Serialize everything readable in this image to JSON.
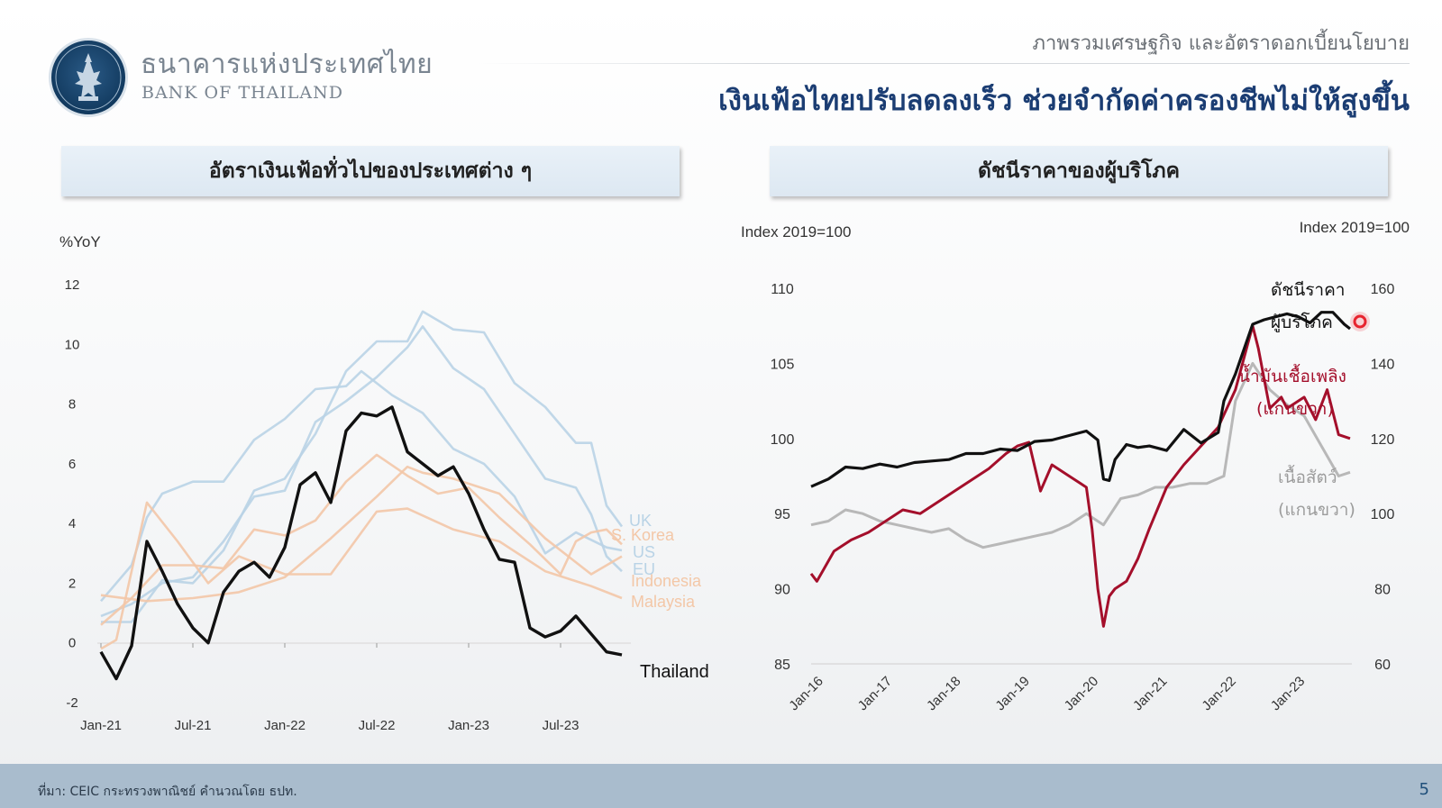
{
  "header": {
    "org_name_th": "ธนาคารแห่งประเทศไทย",
    "org_name_en": "BANK OF THAILAND",
    "topic": "ภาพรวมเศรษฐกิจ และอัตราดอกเบี้ยนโยบาย",
    "headline": "เงินเฟ้อไทยปรับลดลงเร็ว ช่วยจำกัดค่าครองชีพไม่ให้สูงขึ้น"
  },
  "footer": {
    "source": "ที่มา: CEIC กระทรวงพาณิชย์ คำนวณโดย ธปท.",
    "page": "5"
  },
  "colors": {
    "thailand": "#111111",
    "blue_group": "#b9d3e6",
    "orange_group": "#f3c7a7",
    "cpi": "#111111",
    "fuel": "#a40f2b",
    "meat": "#b8b8b8",
    "headline": "#1b3d73",
    "footer_bar": "#a9bccd"
  },
  "chart_data": [
    {
      "type": "line",
      "title": "อัตราเงินเฟ้อทั่วไปของประเทศต่าง ๆ",
      "ylabel": "%YoY",
      "ylim": [
        -2,
        12
      ],
      "yticks": [
        -2,
        0,
        2,
        4,
        6,
        8,
        10,
        12
      ],
      "xlim": [
        "2021-01",
        "2023-11"
      ],
      "xticks": [
        "2021-01",
        "2021-07",
        "2022-01",
        "2022-07",
        "2023-01",
        "2023-07"
      ],
      "xtick_labels": [
        "Jan-21",
        "Jul-21",
        "Jan-22",
        "Jul-22",
        "Jan-23",
        "Jul-23"
      ],
      "grid": false,
      "series": [
        {
          "name": "UK",
          "color_group": "blue",
          "x": [
            "2021-01",
            "2021-03",
            "2021-05",
            "2021-07",
            "2021-09",
            "2021-11",
            "2022-01",
            "2022-03",
            "2022-05",
            "2022-07",
            "2022-09",
            "2022-10",
            "2022-12",
            "2023-02",
            "2023-04",
            "2023-06",
            "2023-08",
            "2023-09",
            "2023-10",
            "2023-11"
          ],
          "values": [
            0.7,
            0.7,
            2.1,
            2.0,
            3.1,
            5.1,
            5.5,
            7.0,
            9.1,
            10.1,
            10.1,
            11.1,
            10.5,
            10.4,
            8.7,
            7.9,
            6.7,
            6.7,
            4.6,
            3.9
          ]
        },
        {
          "name": "US",
          "color_group": "blue",
          "x": [
            "2021-01",
            "2021-03",
            "2021-04",
            "2021-05",
            "2021-07",
            "2021-09",
            "2021-11",
            "2022-01",
            "2022-03",
            "2022-05",
            "2022-06",
            "2022-08",
            "2022-10",
            "2022-12",
            "2023-02",
            "2023-04",
            "2023-06",
            "2023-08",
            "2023-10",
            "2023-11"
          ],
          "values": [
            1.4,
            2.6,
            4.2,
            5.0,
            5.4,
            5.4,
            6.8,
            7.5,
            8.5,
            8.6,
            9.1,
            8.3,
            7.7,
            6.5,
            6.0,
            4.9,
            3.0,
            3.7,
            3.2,
            3.1
          ]
        },
        {
          "name": "EU",
          "color_group": "blue",
          "x": [
            "2021-01",
            "2021-03",
            "2021-05",
            "2021-07",
            "2021-09",
            "2021-11",
            "2022-01",
            "2022-03",
            "2022-05",
            "2022-07",
            "2022-09",
            "2022-10",
            "2022-12",
            "2023-02",
            "2023-04",
            "2023-06",
            "2023-08",
            "2023-09",
            "2023-10",
            "2023-11"
          ],
          "values": [
            0.9,
            1.3,
            2.0,
            2.2,
            3.4,
            4.9,
            5.1,
            7.4,
            8.1,
            8.9,
            9.9,
            10.6,
            9.2,
            8.5,
            7.0,
            5.5,
            5.2,
            4.3,
            2.9,
            2.4
          ]
        },
        {
          "name": "S. Korea",
          "color_group": "orange",
          "x": [
            "2021-01",
            "2021-03",
            "2021-05",
            "2021-07",
            "2021-09",
            "2021-11",
            "2022-01",
            "2022-03",
            "2022-05",
            "2022-07",
            "2022-09",
            "2022-11",
            "2023-01",
            "2023-03",
            "2023-05",
            "2023-07",
            "2023-08",
            "2023-09",
            "2023-10",
            "2023-11"
          ],
          "values": [
            0.6,
            1.5,
            2.6,
            2.6,
            2.5,
            3.8,
            3.6,
            4.1,
            5.4,
            6.3,
            5.6,
            5.0,
            5.2,
            4.2,
            3.3,
            2.3,
            3.4,
            3.7,
            3.8,
            3.3
          ]
        },
        {
          "name": "Indonesia",
          "color_group": "orange",
          "x": [
            "2021-01",
            "2021-04",
            "2021-07",
            "2021-10",
            "2022-01",
            "2022-04",
            "2022-07",
            "2022-09",
            "2022-10",
            "2022-12",
            "2023-03",
            "2023-06",
            "2023-09",
            "2023-11"
          ],
          "values": [
            1.6,
            1.4,
            1.5,
            1.7,
            2.2,
            3.5,
            4.9,
            5.9,
            5.7,
            5.5,
            5.0,
            3.5,
            2.3,
            2.9
          ]
        },
        {
          "name": "Malaysia",
          "color_group": "orange",
          "x": [
            "2021-01",
            "2021-02",
            "2021-04",
            "2021-06",
            "2021-08",
            "2021-10",
            "2022-01",
            "2022-04",
            "2022-07",
            "2022-09",
            "2022-12",
            "2023-03",
            "2023-06",
            "2023-09",
            "2023-11"
          ],
          "values": [
            -0.2,
            0.1,
            4.7,
            3.4,
            2.0,
            2.9,
            2.3,
            2.3,
            4.4,
            4.5,
            3.8,
            3.4,
            2.4,
            1.9,
            1.5
          ]
        },
        {
          "name": "Thailand",
          "color_group": "black",
          "x": [
            "2021-01",
            "2021-02",
            "2021-03",
            "2021-04",
            "2021-05",
            "2021-06",
            "2021-07",
            "2021-08",
            "2021-09",
            "2021-10",
            "2021-11",
            "2021-12",
            "2022-01",
            "2022-02",
            "2022-03",
            "2022-04",
            "2022-05",
            "2022-06",
            "2022-07",
            "2022-08",
            "2022-09",
            "2022-10",
            "2022-11",
            "2022-12",
            "2023-01",
            "2023-02",
            "2023-03",
            "2023-04",
            "2023-05",
            "2023-06",
            "2023-07",
            "2023-08",
            "2023-09",
            "2023-10",
            "2023-11"
          ],
          "values": [
            -0.3,
            -1.2,
            -0.1,
            3.4,
            2.4,
            1.3,
            0.5,
            0.0,
            1.7,
            2.4,
            2.7,
            2.2,
            3.2,
            5.3,
            5.7,
            4.7,
            7.1,
            7.7,
            7.6,
            7.9,
            6.4,
            6.0,
            5.6,
            5.9,
            5.0,
            3.8,
            2.8,
            2.7,
            0.5,
            0.2,
            0.4,
            0.9,
            0.3,
            -0.3,
            -0.4
          ]
        }
      ]
    },
    {
      "type": "line",
      "title": "ดัชนีราคาของผู้บริโภค",
      "ylabel_left": "Index 2019=100",
      "ylabel_right": "Index 2019=100",
      "ylim_left": [
        85,
        110
      ],
      "yticks_left": [
        85,
        90,
        95,
        100,
        105,
        110
      ],
      "ylim_right": [
        60,
        160
      ],
      "yticks_right": [
        60,
        80,
        100,
        120,
        140,
        160
      ],
      "xlim": [
        "2016-01",
        "2023-11"
      ],
      "xticks": [
        "2016-01",
        "2017-01",
        "2018-01",
        "2019-01",
        "2020-01",
        "2021-01",
        "2022-01",
        "2023-01"
      ],
      "xtick_labels": [
        "Jan-16",
        "Jan-17",
        "Jan-18",
        "Jan-19",
        "Jan-20",
        "Jan-21",
        "Jan-22",
        "Jan-23"
      ],
      "grid": false,
      "series": [
        {
          "name": "ดัชนีราคาผู้บริโภค",
          "axis": "left",
          "x": [
            "2016-01",
            "2016-04",
            "2016-07",
            "2016-10",
            "2017-01",
            "2017-04",
            "2017-07",
            "2017-10",
            "2018-01",
            "2018-04",
            "2018-07",
            "2018-10",
            "2019-01",
            "2019-04",
            "2019-07",
            "2019-10",
            "2020-01",
            "2020-03",
            "2020-04",
            "2020-05",
            "2020-06",
            "2020-08",
            "2020-10",
            "2020-12",
            "2021-03",
            "2021-06",
            "2021-09",
            "2021-12",
            "2022-01",
            "2022-03",
            "2022-06",
            "2022-08",
            "2022-10",
            "2022-12",
            "2023-02",
            "2023-04",
            "2023-06",
            "2023-08",
            "2023-10",
            "2023-11"
          ],
          "values": [
            96.8,
            97.3,
            98.1,
            98.0,
            98.3,
            98.1,
            98.4,
            98.5,
            98.6,
            99.0,
            99.0,
            99.3,
            99.2,
            99.8,
            99.9,
            100.2,
            100.5,
            99.9,
            97.3,
            97.2,
            98.6,
            99.6,
            99.4,
            99.5,
            99.2,
            100.6,
            99.7,
            100.4,
            102.5,
            104.3,
            107.6,
            107.9,
            108.1,
            108.3,
            108.1,
            107.7,
            108.4,
            108.4,
            107.6,
            107.3
          ]
        },
        {
          "name": "น้ำมันเชื้อเพลิง",
          "axis": "right",
          "x": [
            "2016-01",
            "2016-02",
            "2016-05",
            "2016-08",
            "2016-11",
            "2017-02",
            "2017-05",
            "2017-08",
            "2017-11",
            "2018-02",
            "2018-05",
            "2018-08",
            "2018-11",
            "2019-01",
            "2019-03",
            "2019-05",
            "2019-07",
            "2019-10",
            "2019-12",
            "2020-01",
            "2020-02",
            "2020-03",
            "2020-04",
            "2020-05",
            "2020-06",
            "2020-08",
            "2020-10",
            "2020-12",
            "2021-03",
            "2021-06",
            "2021-09",
            "2021-12",
            "2022-03",
            "2022-06",
            "2022-07",
            "2022-09",
            "2022-11",
            "2022-12",
            "2023-03",
            "2023-05",
            "2023-07",
            "2023-09",
            "2023-11"
          ],
          "values": [
            84,
            82,
            90,
            93,
            95,
            98,
            101,
            100,
            103,
            106,
            109,
            112,
            116,
            118,
            119,
            106,
            113,
            110,
            108,
            107,
            96,
            80,
            70,
            78,
            80,
            82,
            88,
            96,
            107,
            113,
            118,
            123,
            133,
            150,
            144,
            128,
            131,
            128,
            131,
            125,
            133,
            121,
            120
          ]
        },
        {
          "name": "เนื้อสัตว์",
          "axis": "right",
          "x": [
            "2016-01",
            "2016-04",
            "2016-07",
            "2016-10",
            "2017-01",
            "2017-04",
            "2017-07",
            "2017-10",
            "2018-01",
            "2018-04",
            "2018-07",
            "2018-10",
            "2019-01",
            "2019-04",
            "2019-07",
            "2019-10",
            "2020-01",
            "2020-04",
            "2020-07",
            "2020-10",
            "2021-01",
            "2021-04",
            "2021-07",
            "2021-10",
            "2022-01",
            "2022-03",
            "2022-06",
            "2022-09",
            "2022-12",
            "2023-03",
            "2023-06",
            "2023-09",
            "2023-11"
          ],
          "values": [
            97,
            98,
            101,
            100,
            98,
            97,
            96,
            95,
            96,
            93,
            91,
            92,
            93,
            94,
            95,
            97,
            100,
            97,
            104,
            105,
            107,
            107,
            108,
            108,
            110,
            130,
            140,
            133,
            129,
            126,
            118,
            110,
            111
          ]
        }
      ],
      "annotations": {
        "cpi_label_line1": "ดัชนีราคา",
        "cpi_label_line2": "ผู้บริโภค",
        "fuel_label_line1": "น้ำมันเชื้อเพลิง",
        "fuel_label_line2": "(แกนขวา)",
        "meat_label_line1": "เนื้อสัตว์",
        "meat_label_line2": "(แกนขวา)"
      }
    }
  ]
}
